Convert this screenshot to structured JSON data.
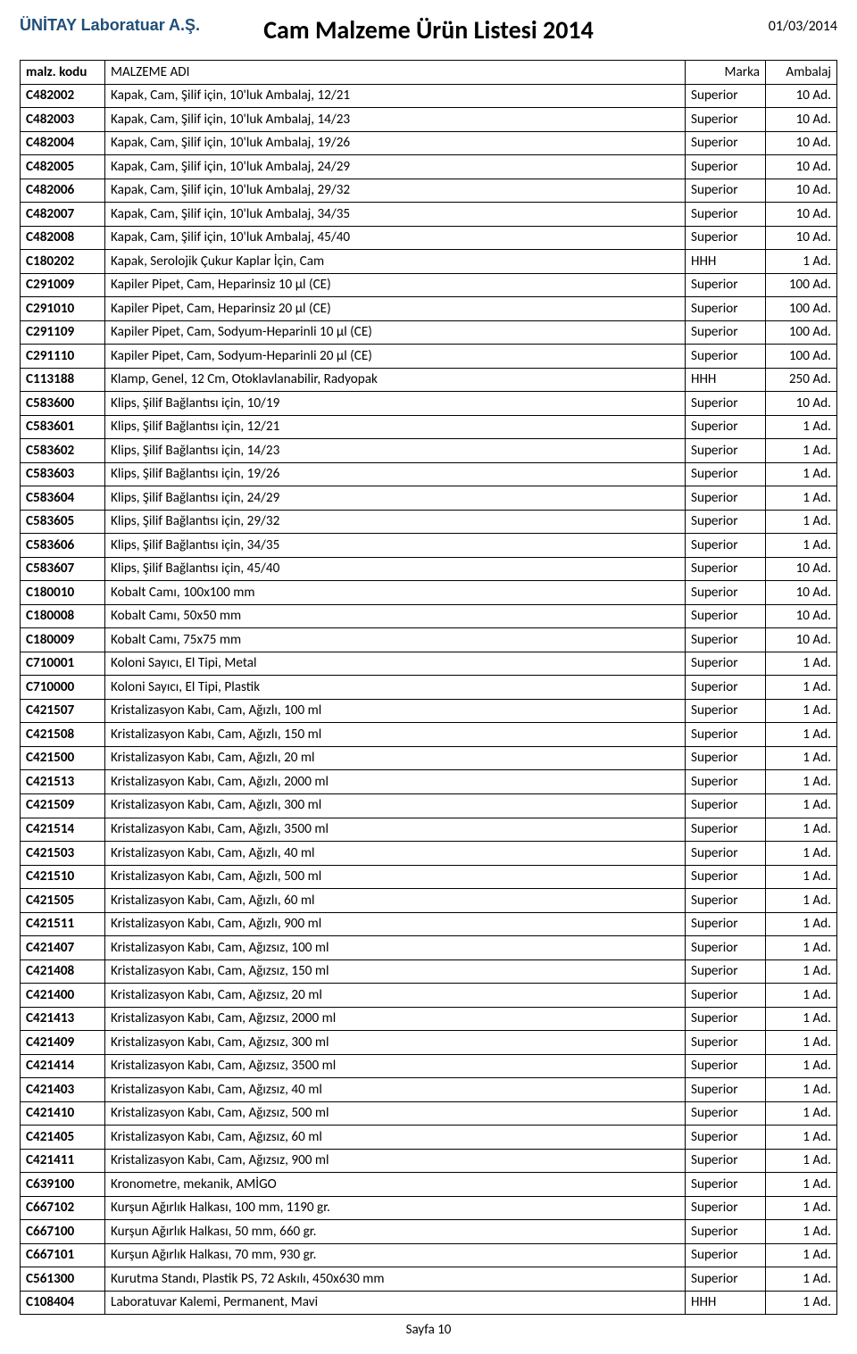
{
  "header": {
    "company": "ÜNİTAY Laboratuar A.Ş.",
    "title": "Cam Malzeme Ürün Listesi 2014",
    "date": "01/03/2014"
  },
  "table": {
    "columns": {
      "code": "malz. kodu",
      "name": "MALZEME ADI",
      "brand": "Marka",
      "pack": "Ambalaj"
    },
    "rows": [
      {
        "code": "C482002",
        "name": "Kapak, Cam, Şilif için, 10'luk  Ambalaj, 12/21",
        "brand": "Superior",
        "pack": "10 Ad."
      },
      {
        "code": "C482003",
        "name": "Kapak, Cam, Şilif için, 10'luk  Ambalaj, 14/23",
        "brand": "Superior",
        "pack": "10 Ad."
      },
      {
        "code": "C482004",
        "name": "Kapak, Cam, Şilif için, 10'luk  Ambalaj, 19/26",
        "brand": "Superior",
        "pack": "10 Ad."
      },
      {
        "code": "C482005",
        "name": "Kapak, Cam, Şilif için, 10'luk  Ambalaj, 24/29",
        "brand": "Superior",
        "pack": "10 Ad."
      },
      {
        "code": "C482006",
        "name": "Kapak, Cam, Şilif için, 10'luk  Ambalaj, 29/32",
        "brand": "Superior",
        "pack": "10 Ad."
      },
      {
        "code": "C482007",
        "name": "Kapak, Cam, Şilif için, 10'luk  Ambalaj, 34/35",
        "brand": "Superior",
        "pack": "10 Ad."
      },
      {
        "code": "C482008",
        "name": "Kapak, Cam, Şilif için, 10'luk  Ambalaj, 45/40",
        "brand": "Superior",
        "pack": "10 Ad."
      },
      {
        "code": "C180202",
        "name": "Kapak, Serolojik Çukur Kaplar İçin, Cam",
        "brand": "HHH",
        "pack": "1 Ad."
      },
      {
        "code": "C291009",
        "name": "Kapiler Pipet, Cam, Heparinsiz 10  µl (CE)",
        "brand": "Superior",
        "pack": "100 Ad."
      },
      {
        "code": "C291010",
        "name": "Kapiler Pipet, Cam, Heparinsiz 20  µl (CE)",
        "brand": "Superior",
        "pack": "100 Ad."
      },
      {
        "code": "C291109",
        "name": "Kapiler Pipet, Cam, Sodyum-Heparinli 10  µl (CE)",
        "brand": "Superior",
        "pack": "100 Ad."
      },
      {
        "code": "C291110",
        "name": "Kapiler Pipet, Cam, Sodyum-Heparinli 20  µl (CE)",
        "brand": "Superior",
        "pack": "100 Ad."
      },
      {
        "code": "C113188",
        "name": "Klamp, Genel, 12 Cm, Otoklavlanabilir, Radyopak",
        "brand": "HHH",
        "pack": "250 Ad."
      },
      {
        "code": "C583600",
        "name": "Klips, Şilif Bağlantısı için, 10/19",
        "brand": "Superior",
        "pack": "10 Ad."
      },
      {
        "code": "C583601",
        "name": "Klips, Şilif Bağlantısı için, 12/21",
        "brand": "Superior",
        "pack": "1 Ad."
      },
      {
        "code": "C583602",
        "name": "Klips, Şilif Bağlantısı için, 14/23",
        "brand": "Superior",
        "pack": "1 Ad."
      },
      {
        "code": "C583603",
        "name": "Klips, Şilif Bağlantısı için, 19/26",
        "brand": "Superior",
        "pack": "1 Ad."
      },
      {
        "code": "C583604",
        "name": "Klips, Şilif Bağlantısı için, 24/29",
        "brand": "Superior",
        "pack": "1 Ad."
      },
      {
        "code": "C583605",
        "name": "Klips, Şilif Bağlantısı için, 29/32",
        "brand": "Superior",
        "pack": "1 Ad."
      },
      {
        "code": "C583606",
        "name": "Klips, Şilif Bağlantısı için, 34/35",
        "brand": "Superior",
        "pack": "1 Ad."
      },
      {
        "code": "C583607",
        "name": "Klips, Şilif Bağlantısı için, 45/40",
        "brand": "Superior",
        "pack": "10 Ad."
      },
      {
        "code": "C180010",
        "name": "Kobalt Camı, 100x100 mm",
        "brand": "Superior",
        "pack": "10 Ad."
      },
      {
        "code": "C180008",
        "name": "Kobalt Camı, 50x50 mm",
        "brand": "Superior",
        "pack": "10 Ad."
      },
      {
        "code": "C180009",
        "name": "Kobalt Camı, 75x75 mm",
        "brand": "Superior",
        "pack": "10 Ad."
      },
      {
        "code": "C710001",
        "name": "Koloni Sayıcı, El Tipi, Metal",
        "brand": "Superior",
        "pack": "1 Ad."
      },
      {
        "code": "C710000",
        "name": "Koloni Sayıcı, El Tipi, Plastik",
        "brand": "Superior",
        "pack": "1 Ad."
      },
      {
        "code": "C421507",
        "name": "Kristalizasyon Kabı, Cam, Ağızlı, 100 ml",
        "brand": "Superior",
        "pack": "1 Ad."
      },
      {
        "code": "C421508",
        "name": "Kristalizasyon Kabı, Cam, Ağızlı, 150 ml",
        "brand": "Superior",
        "pack": "1 Ad."
      },
      {
        "code": "C421500",
        "name": "Kristalizasyon Kabı, Cam, Ağızlı, 20 ml",
        "brand": "Superior",
        "pack": "1 Ad."
      },
      {
        "code": "C421513",
        "name": "Kristalizasyon Kabı, Cam, Ağızlı, 2000 ml",
        "brand": "Superior",
        "pack": "1 Ad."
      },
      {
        "code": "C421509",
        "name": "Kristalizasyon Kabı, Cam, Ağızlı, 300 ml",
        "brand": "Superior",
        "pack": "1 Ad."
      },
      {
        "code": "C421514",
        "name": "Kristalizasyon Kabı, Cam, Ağızlı, 3500 ml",
        "brand": "Superior",
        "pack": "1 Ad."
      },
      {
        "code": "C421503",
        "name": "Kristalizasyon Kabı, Cam, Ağızlı, 40 ml",
        "brand": "Superior",
        "pack": "1 Ad."
      },
      {
        "code": "C421510",
        "name": "Kristalizasyon Kabı, Cam, Ağızlı, 500 ml",
        "brand": "Superior",
        "pack": "1 Ad."
      },
      {
        "code": "C421505",
        "name": "Kristalizasyon Kabı, Cam, Ağızlı, 60 ml",
        "brand": "Superior",
        "pack": "1 Ad."
      },
      {
        "code": "C421511",
        "name": "Kristalizasyon Kabı, Cam, Ağızlı, 900 ml",
        "brand": "Superior",
        "pack": "1 Ad."
      },
      {
        "code": "C421407",
        "name": "Kristalizasyon Kabı, Cam, Ağızsız, 100 ml",
        "brand": "Superior",
        "pack": "1 Ad."
      },
      {
        "code": "C421408",
        "name": "Kristalizasyon Kabı, Cam, Ağızsız, 150 ml",
        "brand": "Superior",
        "pack": "1 Ad."
      },
      {
        "code": "C421400",
        "name": "Kristalizasyon Kabı, Cam, Ağızsız, 20 ml",
        "brand": "Superior",
        "pack": "1 Ad."
      },
      {
        "code": "C421413",
        "name": "Kristalizasyon Kabı, Cam, Ağızsız, 2000 ml",
        "brand": "Superior",
        "pack": "1 Ad."
      },
      {
        "code": "C421409",
        "name": "Kristalizasyon Kabı, Cam, Ağızsız, 300 ml",
        "brand": "Superior",
        "pack": "1 Ad."
      },
      {
        "code": "C421414",
        "name": "Kristalizasyon Kabı, Cam, Ağızsız, 3500 ml",
        "brand": "Superior",
        "pack": "1 Ad."
      },
      {
        "code": "C421403",
        "name": "Kristalizasyon Kabı, Cam, Ağızsız, 40 ml",
        "brand": "Superior",
        "pack": "1 Ad."
      },
      {
        "code": "C421410",
        "name": "Kristalizasyon Kabı, Cam, Ağızsız, 500 ml",
        "brand": "Superior",
        "pack": "1 Ad."
      },
      {
        "code": "C421405",
        "name": "Kristalizasyon Kabı, Cam, Ağızsız, 60 ml",
        "brand": "Superior",
        "pack": "1 Ad."
      },
      {
        "code": "C421411",
        "name": "Kristalizasyon Kabı, Cam, Ağızsız, 900 ml",
        "brand": "Superior",
        "pack": "1 Ad."
      },
      {
        "code": "C639100",
        "name": "Kronometre, mekanik, AMİGO",
        "brand": "Superior",
        "pack": "1 Ad."
      },
      {
        "code": "C667102",
        "name": "Kurşun Ağırlık Halkası, 100 mm, 1190 gr.",
        "brand": "Superior",
        "pack": "1 Ad."
      },
      {
        "code": "C667100",
        "name": "Kurşun Ağırlık Halkası, 50 mm, 660 gr.",
        "brand": "Superior",
        "pack": "1 Ad."
      },
      {
        "code": "C667101",
        "name": "Kurşun Ağırlık Halkası, 70 mm, 930 gr.",
        "brand": "Superior",
        "pack": "1 Ad."
      },
      {
        "code": "C561300",
        "name": "Kurutma Standı, Plastik PS, 72 Askılı, 450x630 mm",
        "brand": "Superior",
        "pack": "1 Ad."
      },
      {
        "code": "C108404",
        "name": "Laboratuvar Kalemi, Permanent, Mavi",
        "brand": "HHH",
        "pack": "1 Ad."
      }
    ]
  },
  "footer": {
    "page": "Sayfa 10"
  }
}
